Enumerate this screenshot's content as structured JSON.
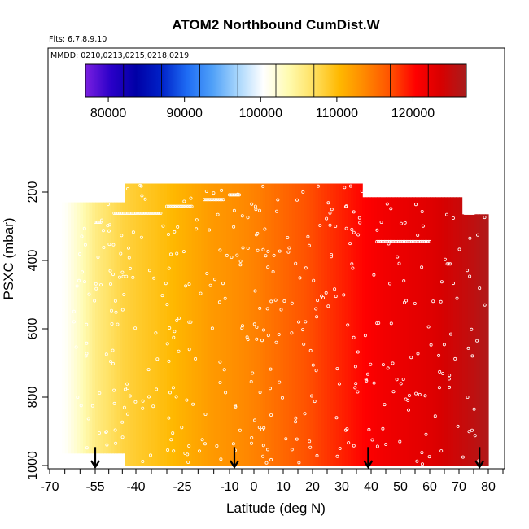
{
  "chart_data": {
    "type": "heatmap",
    "title": "ATOM2 Northbound CumDist.W",
    "subtitle": "Flts: 6,7,8,9,10",
    "annotation": "MMDD: 0210,0213,0215,0218,0219",
    "xlabel": "Latitude (deg N)",
    "ylabel": "PSXC (mbar)",
    "x_ticks": [
      -70,
      -55,
      -40,
      -25,
      -10,
      0,
      10,
      20,
      30,
      40,
      50,
      60,
      70,
      80
    ],
    "y_ticks": [
      200,
      400,
      600,
      800,
      1000
    ],
    "xlim": [
      -70,
      85
    ],
    "ylim": [
      1030,
      0
    ],
    "y_reversed": true,
    "colorbar": {
      "ticks": [
        80000,
        90000,
        100000,
        110000,
        120000
      ],
      "range": [
        77000,
        127000
      ],
      "colors": [
        "#7a1fe0",
        "#2a00c8",
        "#0000a6",
        "#0022c8",
        "#1e6cf4",
        "#4fa0f8",
        "#a8d6fc",
        "#ffffff",
        "#fffbb0",
        "#ffe060",
        "#ffb800",
        "#ff8800",
        "#ff5200",
        "#ff0000",
        "#d80000",
        "#a81d1d"
      ]
    },
    "field": {
      "description_units": "CumDist.W",
      "lat_edges": [
        -65,
        -55,
        -45,
        -35,
        -25,
        -15,
        -5,
        5,
        15,
        25,
        35,
        45,
        55,
        65,
        75,
        80
      ],
      "value_at_lat": [
        {
          "lat": -65,
          "value": 100500
        },
        {
          "lat": -55,
          "value": 105500
        },
        {
          "lat": -45,
          "value": 108000
        },
        {
          "lat": -30,
          "value": 110000
        },
        {
          "lat": -15,
          "value": 112500
        },
        {
          "lat": 0,
          "value": 114000
        },
        {
          "lat": 15,
          "value": 116500
        },
        {
          "lat": 30,
          "value": 119000
        },
        {
          "lat": 45,
          "value": 121500
        },
        {
          "lat": 60,
          "value": 123000
        },
        {
          "lat": 75,
          "value": 125500
        },
        {
          "lat": 80,
          "value": 126500
        }
      ],
      "coverage": [
        {
          "lat_min": -66,
          "lat_max": -44,
          "p_min": 230,
          "p_max": 965
        },
        {
          "lat_min": -44,
          "lat_max": 37,
          "p_min": 175,
          "p_max": 1000
        },
        {
          "lat_min": 37,
          "lat_max": 71,
          "p_min": 215,
          "p_max": 1000
        },
        {
          "lat_min": 71,
          "lat_max": 80,
          "p_min": 265,
          "p_max": 1000
        }
      ]
    },
    "markers": [
      {
        "lat": -55,
        "p": 965
      },
      {
        "lat": -8,
        "p": 965
      },
      {
        "lat": 39,
        "p": 965
      },
      {
        "lat": 77,
        "p": 965
      }
    ]
  }
}
